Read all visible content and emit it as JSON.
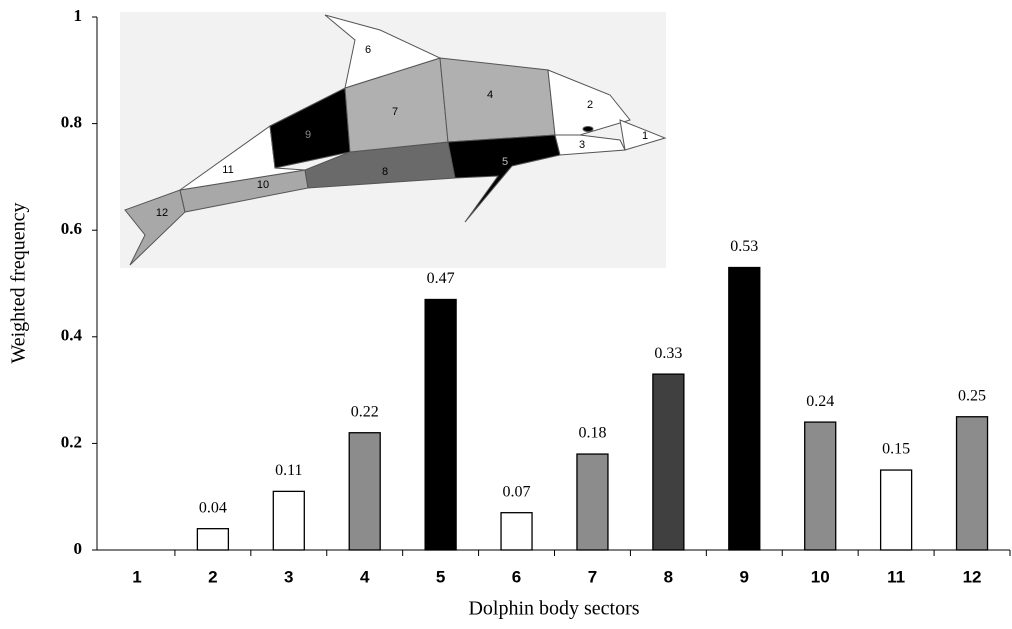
{
  "chart_data": {
    "type": "bar",
    "ylabel": "Weighted frequency",
    "xlabel": "Dolphin body sectors",
    "categories": [
      "1",
      "2",
      "3",
      "4",
      "5",
      "6",
      "7",
      "8",
      "9",
      "10",
      "11",
      "12"
    ],
    "values": [
      0,
      0.04,
      0.11,
      0.22,
      0.47,
      0.07,
      0.18,
      0.33,
      0.53,
      0.24,
      0.15,
      0.25
    ],
    "value_labels": [
      null,
      "0.04",
      "0.11",
      "0.22",
      "0.47",
      "0.07",
      "0.18",
      "0.33",
      "0.53",
      "0.24",
      "0.15",
      "0.25"
    ],
    "colors": [
      "#ffffff",
      "#ffffff",
      "#ffffff",
      "#8c8c8c",
      "#000000",
      "#ffffff",
      "#8c8c8c",
      "#404040",
      "#000000",
      "#8c8c8c",
      "#ffffff",
      "#8c8c8c"
    ],
    "ylim": [
      0,
      1
    ],
    "yticks": [
      0,
      0.2,
      0.4,
      0.6,
      0.8,
      1
    ],
    "inset_labels": [
      "1",
      "2",
      "3",
      "4",
      "5",
      "6",
      "7",
      "8",
      "9",
      "10",
      "11",
      "12"
    ]
  }
}
